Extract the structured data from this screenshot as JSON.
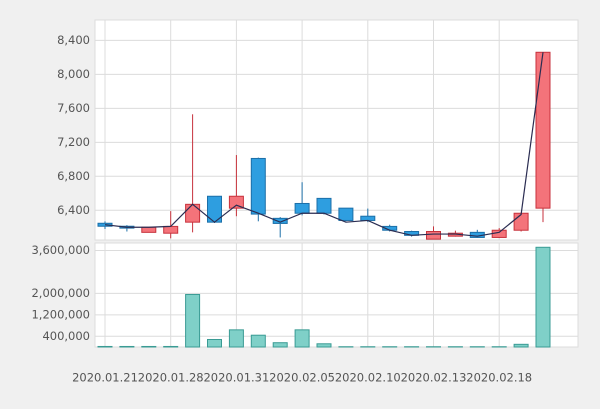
{
  "chart_data": [
    {
      "type": "candlestick",
      "categories": [
        "2020.01.21",
        null,
        null,
        "2020.01.28",
        null,
        null,
        "2020.01.31",
        null,
        null,
        "2020.02.05",
        null,
        null,
        "2020.02.10",
        null,
        null,
        "2020.02.13",
        null,
        null,
        "2020.02.18",
        null,
        null
      ],
      "open": [
        6247,
        6212,
        6140,
        6130,
        6260,
        6565,
        6425,
        7010,
        6305,
        6480,
        6540,
        6425,
        6330,
        6210,
        6150,
        6060,
        6095,
        6140,
        6080,
        6165,
        6425
      ],
      "high": [
        6270,
        6225,
        6200,
        6390,
        7530,
        6565,
        7050,
        7020,
        6320,
        6730,
        6545,
        6425,
        6420,
        6230,
        6160,
        6210,
        6160,
        6170,
        6190,
        6370,
        8260
      ],
      "low": [
        6180,
        6150,
        6140,
        6070,
        6140,
        6250,
        6330,
        6270,
        6080,
        6340,
        6350,
        6270,
        6260,
        6150,
        6090,
        6060,
        6090,
        6075,
        6075,
        6150,
        6260
      ],
      "close": [
        6212,
        6190,
        6200,
        6210,
        6470,
        6260,
        6565,
        6355,
        6245,
        6365,
        6365,
        6280,
        6280,
        6165,
        6105,
        6150,
        6130,
        6080,
        6165,
        6365,
        8260
      ],
      "line": {
        "color": "#2b2d52",
        "values": [
          6230,
          6200,
          6200,
          6210,
          6470,
          6260,
          6460,
          6365,
          6260,
          6365,
          6365,
          6260,
          6280,
          6165,
          6105,
          6120,
          6120,
          6095,
          6140,
          6350,
          8260
        ]
      },
      "up_color": "#f4737a",
      "up_stroke": "#c7323c",
      "down_color": "#2e9ee0",
      "down_stroke": "#1c6fa8",
      "ylim": [
        6050,
        8640
      ],
      "yticks": [
        {
          "value": 6400,
          "label": "6,400"
        },
        {
          "value": 6800,
          "label": "6,800"
        },
        {
          "value": 7200,
          "label": "7,200"
        },
        {
          "value": 7600,
          "label": "7,600"
        },
        {
          "value": 8000,
          "label": "8,000"
        },
        {
          "value": 8400,
          "label": "8,400"
        }
      ],
      "grid": true
    },
    {
      "type": "bar",
      "values": [
        20000,
        20000,
        20000,
        20000,
        1960000,
        280000,
        640000,
        440000,
        160000,
        640000,
        120000,
        10000,
        10000,
        10000,
        10000,
        10000,
        10000,
        10000,
        10000,
        100000,
        3720000
      ],
      "color": "#7fd0c8",
      "stroke": "#3a9b94",
      "ylim": [
        0,
        3880000
      ],
      "yticks": [
        {
          "value": 400000,
          "label": "400,000"
        },
        {
          "value": 1200000,
          "label": "1,200,000"
        },
        {
          "value": 2000000,
          "label": "2,000,000"
        },
        {
          "value": 3600000,
          "label": "3,600,000"
        }
      ],
      "grid": true
    }
  ]
}
